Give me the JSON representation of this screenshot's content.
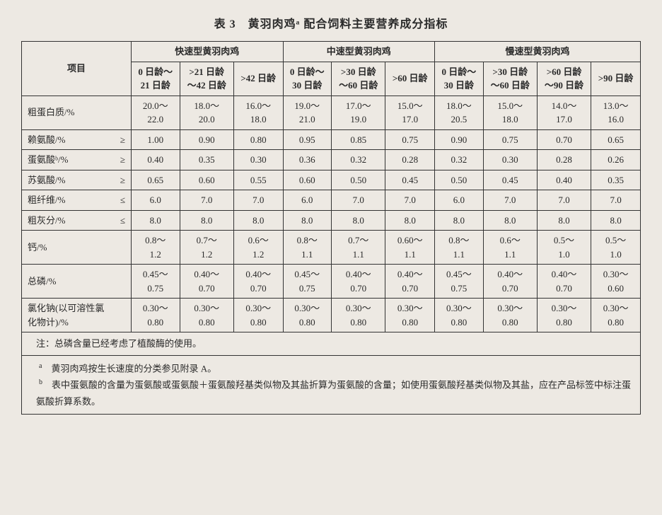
{
  "title": "表 3　黄羽肉鸡ᵃ 配合饲料主要营养成分指标",
  "header": {
    "item": "项目",
    "group1": "快速型黄羽肉鸡",
    "group2": "中速型黄羽肉鸡",
    "group3": "慢速型黄羽肉鸡",
    "g1c1a": "0 日龄～",
    "g1c1b": "21 日龄",
    "g1c2a": ">21 日龄",
    "g1c2b": "～42 日龄",
    "g1c3": ">42 日龄",
    "g2c1a": "0 日龄～",
    "g2c1b": "30 日龄",
    "g2c2a": ">30 日龄",
    "g2c2b": "～60 日龄",
    "g2c3": ">60 日龄",
    "g3c1a": "0 日龄～",
    "g3c1b": "30 日龄",
    "g3c2a": ">30 日龄",
    "g3c2b": "～60 日龄",
    "g3c3a": ">60 日龄",
    "g3c3b": "～90 日龄",
    "g3c4": ">90 日龄"
  },
  "rows": [
    {
      "name": "粗蛋白质/%",
      "op": "",
      "v": [
        "20.0～\n22.0",
        "18.0～\n20.0",
        "16.0～\n18.0",
        "19.0～\n21.0",
        "17.0～\n19.0",
        "15.0～\n17.0",
        "18.0～\n20.5",
        "15.0～\n18.0",
        "14.0～\n17.0",
        "13.0～\n16.0"
      ]
    },
    {
      "name": "赖氨酸/%",
      "op": "≥",
      "v": [
        "1.00",
        "0.90",
        "0.80",
        "0.95",
        "0.85",
        "0.75",
        "0.90",
        "0.75",
        "0.70",
        "0.65"
      ]
    },
    {
      "name": "蛋氨酸ᵇ/%",
      "op": "≥",
      "v": [
        "0.40",
        "0.35",
        "0.30",
        "0.36",
        "0.32",
        "0.28",
        "0.32",
        "0.30",
        "0.28",
        "0.26"
      ]
    },
    {
      "name": "苏氨酸/%",
      "op": "≥",
      "v": [
        "0.65",
        "0.60",
        "0.55",
        "0.60",
        "0.50",
        "0.45",
        "0.50",
        "0.45",
        "0.40",
        "0.35"
      ]
    },
    {
      "name": "粗纤维/%",
      "op": "≤",
      "v": [
        "6.0",
        "7.0",
        "7.0",
        "6.0",
        "7.0",
        "7.0",
        "6.0",
        "7.0",
        "7.0",
        "7.0"
      ]
    },
    {
      "name": "粗灰分/%",
      "op": "≤",
      "v": [
        "8.0",
        "8.0",
        "8.0",
        "8.0",
        "8.0",
        "8.0",
        "8.0",
        "8.0",
        "8.0",
        "8.0"
      ]
    },
    {
      "name": "钙/%",
      "op": "",
      "v": [
        "0.8～\n1.2",
        "0.7～\n1.2",
        "0.6～\n1.2",
        "0.8～\n1.1",
        "0.7～\n1.1",
        "0.60～\n1.1",
        "0.8～\n1.1",
        "0.6～\n1.1",
        "0.5～\n1.0",
        "0.5～\n1.0"
      ]
    },
    {
      "name": "总磷/%",
      "op": "",
      "v": [
        "0.45～\n0.75",
        "0.40～\n0.70",
        "0.40～\n0.70",
        "0.45～\n0.75",
        "0.40～\n0.70",
        "0.40～\n0.70",
        "0.45～\n0.75",
        "0.40～\n0.70",
        "0.40～\n0.70",
        "0.30～\n0.60"
      ]
    },
    {
      "name": "氯化钠(以可溶性氯化物计)/%",
      "op": "",
      "v": [
        "0.30～\n0.80",
        "0.30～\n0.80",
        "0.30～\n0.80",
        "0.30～\n0.80",
        "0.30～\n0.80",
        "0.30～\n0.80",
        "0.30～\n0.80",
        "0.30～\n0.80",
        "0.30～\n0.80",
        "0.30～\n0.80"
      ]
    }
  ],
  "notes": {
    "main": "注：总磷含量已经考虑了植酸酶的使用。",
    "a": "黄羽肉鸡按生长速度的分类参见附录 A。",
    "b": "表中蛋氨酸的含量为蛋氨酸或蛋氨酸＋蛋氨酸羟基类似物及其盐折算为蛋氨酸的含量；如使用蛋氨酸羟基类似物及其盐，应在产品标签中标注蛋氨酸折算系数。"
  }
}
